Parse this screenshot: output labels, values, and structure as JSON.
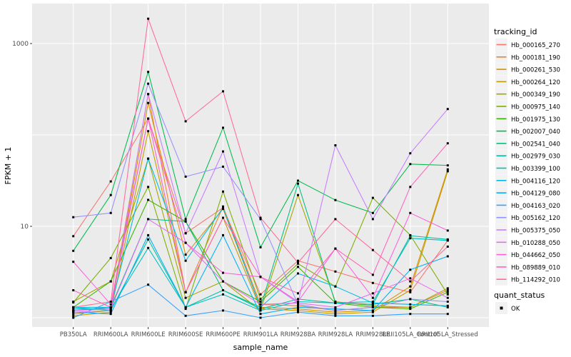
{
  "chart_data": {
    "type": "line",
    "title": "",
    "x_axis": {
      "label": "sample_name",
      "categories": [
        "PB350LA",
        "RRIM600LA",
        "RRIM600LE",
        "RRIM600SE",
        "RRIM600PE",
        "RRIM901LA",
        "RRIM928BA",
        "RRIM928LA",
        "RRIM928LE",
        "RRII105LA_Control",
        "RRII105LA_Stressed"
      ]
    },
    "y_axis": {
      "label": "FPKM + 1",
      "scale": "log10",
      "tick_values": [
        10,
        1000
      ],
      "tick_labels": [
        "10",
        "1000"
      ],
      "major_gridlines_at": [
        1,
        10,
        100,
        1000
      ],
      "range": [
        0.9,
        2600
      ]
    },
    "legend": {
      "title": "tracking_id",
      "position": "right"
    },
    "quant_legend": {
      "title": "quant_status",
      "items": [
        {
          "label": "OK",
          "marker": "black-square"
        }
      ]
    },
    "point_marker": "black-square",
    "series": [
      {
        "name": "Hb_000165_270",
        "color": "#F8766D",
        "values": [
          7.8,
          31,
          151,
          8.4,
          16,
          1.8,
          4.2,
          3.2,
          2.4,
          1.9,
          7.0
        ]
      },
      {
        "name": "Hb_000181_190",
        "color": "#EA8331",
        "values": [
          1.2,
          1.3,
          280,
          1.9,
          16.5,
          1.4,
          1.35,
          1.2,
          1.3,
          1.3,
          2.0
        ]
      },
      {
        "name": "Hb_000261_530",
        "color": "#D89000",
        "values": [
          1.1,
          1.2,
          224,
          4.9,
          15.5,
          1.3,
          1.25,
          1.15,
          1.2,
          2.2,
          42
        ]
      },
      {
        "name": "Hb_000264_120",
        "color": "#C09B00",
        "values": [
          1.05,
          1.15,
          110,
          1.9,
          12.4,
          1.25,
          1.2,
          1.1,
          1.15,
          2.0,
          40
        ]
      },
      {
        "name": "Hb_000349_190",
        "color": "#A3A500",
        "values": [
          1.5,
          2.5,
          55,
          1.65,
          2.5,
          1.2,
          22,
          1.5,
          1.35,
          1.3,
          2.1
        ]
      },
      {
        "name": "Hb_000975_140",
        "color": "#7CAE00",
        "values": [
          1.47,
          4.5,
          27,
          1.25,
          24,
          1.6,
          3.9,
          2.2,
          20.5,
          8.0,
          1.8
        ]
      },
      {
        "name": "Hb_001975_130",
        "color": "#39B600",
        "values": [
          1.3,
          2.5,
          19.5,
          11.3,
          2.5,
          1.5,
          3.6,
          1.45,
          1.3,
          1.25,
          1.9
        ]
      },
      {
        "name": "Hb_002007_040",
        "color": "#00BB4E",
        "values": [
          5.4,
          22,
          490,
          12,
          120,
          5.9,
          31.6,
          19.4,
          14,
          48,
          46.5
        ]
      },
      {
        "name": "Hb_002541_040",
        "color": "#00BF7D",
        "values": [
          1.2,
          1.3,
          12,
          11.3,
          2.0,
          1.3,
          29.4,
          1.45,
          1.4,
          1.6,
          1.3
        ]
      },
      {
        "name": "Hb_002979_030",
        "color": "#00C1A3",
        "values": [
          1.3,
          1.2,
          7.2,
          1.3,
          2.0,
          1.25,
          1.6,
          1.45,
          1.4,
          7.9,
          7.2
        ]
      },
      {
        "name": "Hb_003399_100",
        "color": "#00BFC4",
        "values": [
          1.25,
          1.25,
          5.8,
          1.3,
          1.8,
          1.2,
          1.5,
          1.45,
          1.5,
          7.4,
          7.0
        ]
      },
      {
        "name": "Hb_004116_120",
        "color": "#00BAE0",
        "values": [
          1.3,
          1.3,
          55,
          4.2,
          16,
          1.3,
          3.05,
          2.2,
          1.45,
          1.4,
          1.35
        ]
      },
      {
        "name": "Hb_004129_080",
        "color": "#00B0F6",
        "values": [
          1.15,
          1.1,
          8.0,
          1.3,
          8.0,
          1.1,
          1.3,
          1.25,
          1.2,
          3.35,
          4.7
        ]
      },
      {
        "name": "Hb_004163_020",
        "color": "#35A2FF",
        "values": [
          1.0,
          1.5,
          2.3,
          1.05,
          1.2,
          1.0,
          1.15,
          1.05,
          1.05,
          1.1,
          1.1
        ]
      },
      {
        "name": "Hb_005162_120",
        "color": "#9590FF",
        "values": [
          12.6,
          14,
          364,
          35,
          45,
          12.0,
          1.4,
          1.2,
          1.3,
          1.6,
          1.5
        ]
      },
      {
        "name": "Hb_005375_050",
        "color": "#C77CFF",
        "values": [
          1.15,
          1.2,
          280,
          8.4,
          66,
          2.8,
          1.45,
          77,
          12,
          63,
          192
        ]
      },
      {
        "name": "Hb_010288_050",
        "color": "#E76BF3",
        "values": [
          1.2,
          1.25,
          12,
          6.6,
          2.5,
          1.4,
          1.45,
          1.3,
          1.85,
          2.7,
          1.65
        ]
      },
      {
        "name": "Hb_044662_050",
        "color": "#FA62DB",
        "values": [
          4.1,
          1.4,
          151,
          6.6,
          3.1,
          2.8,
          1.5,
          5.7,
          1.65,
          14,
          9.0
        ]
      },
      {
        "name": "Hb_089889_010",
        "color": "#FF62BC",
        "values": [
          2.0,
          1.3,
          151,
          1.9,
          12.4,
          2.8,
          1.85,
          5.7,
          2.95,
          27,
          81
        ]
      },
      {
        "name": "Hb_114292_010",
        "color": "#FF6A98",
        "values": [
          1.3,
          1.5,
          1870,
          141,
          300,
          12.4,
          4.0,
          12,
          5.5,
          2.5,
          6.0
        ]
      }
    ],
    "colors": {
      "panel_background": "#EBEBEB",
      "gridline": "#FFFFFF",
      "axis_text": "#4D4D4D",
      "title_text": "#000000",
      "legend_key_background": "#F2F2F2",
      "point": "#000000"
    }
  }
}
